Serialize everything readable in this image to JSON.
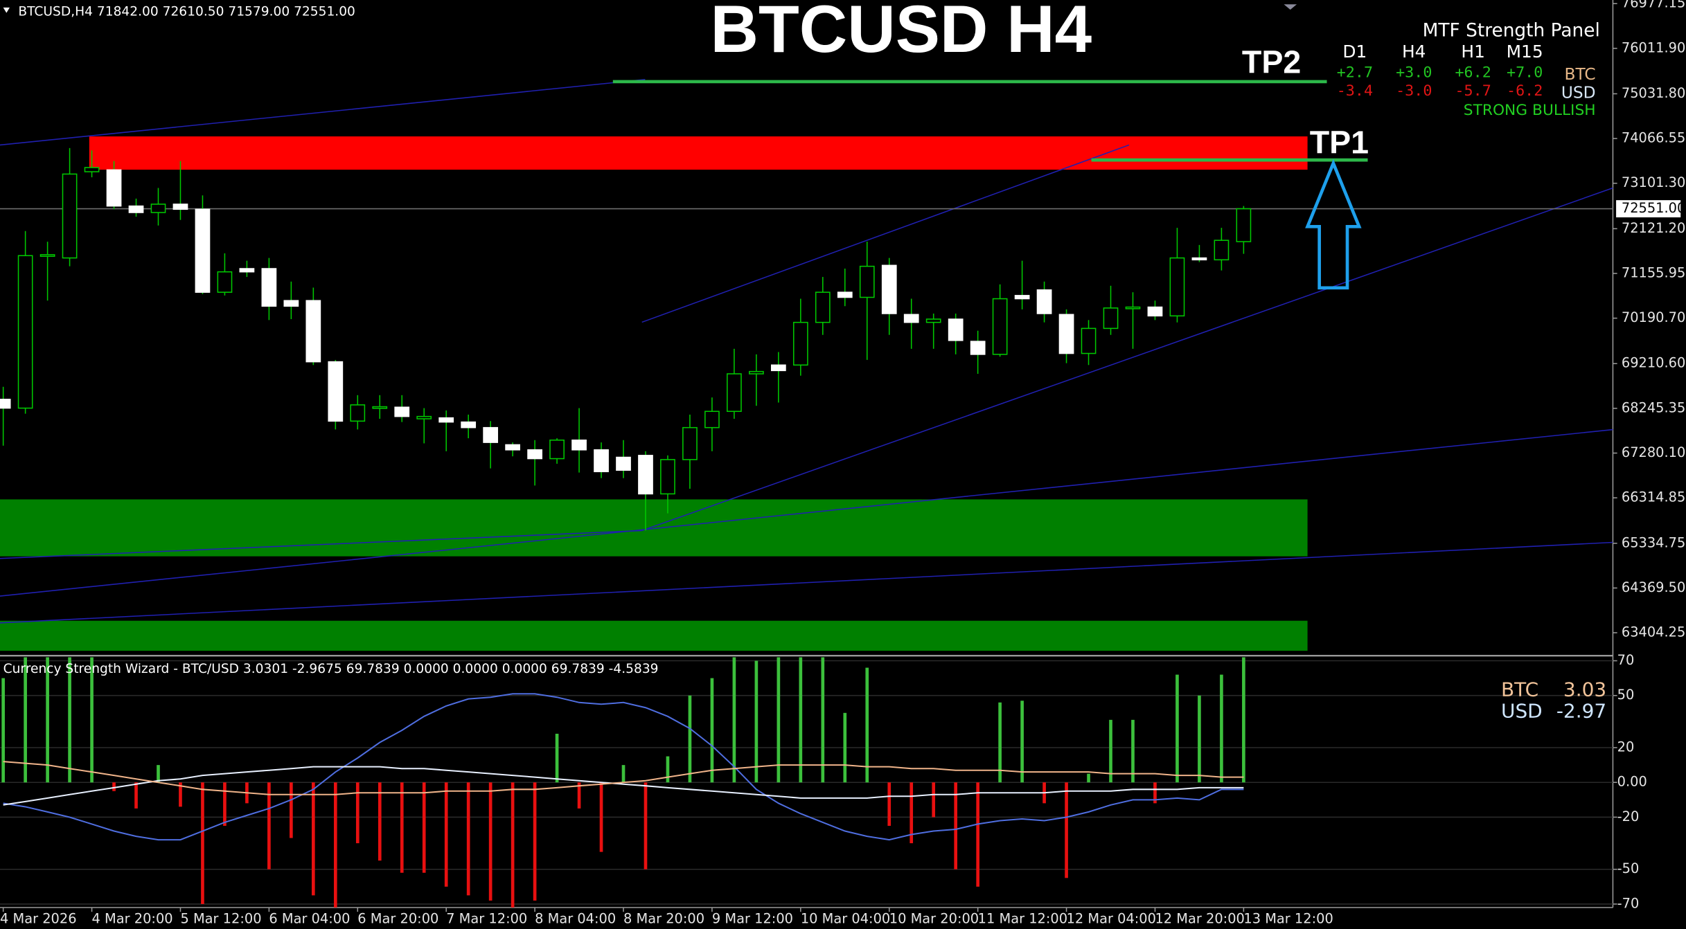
{
  "chart_data": [
    {
      "type": "candlestick",
      "title": "BTCUSD H4",
      "header": "BTCUSD,H4  71842.00 72610.50 71579.00 72551.00",
      "categories": [
        "4 Mar 2026",
        null,
        null,
        null,
        "4 Mar 20:00",
        null,
        null,
        null,
        "5 Mar 12:00",
        null,
        null,
        null,
        "6 Mar 04:00",
        null,
        null,
        null,
        "6 Mar 20:00",
        null,
        null,
        null,
        "7 Mar 12:00",
        null,
        null,
        null,
        "8 Mar 04:00",
        null,
        null,
        null,
        "8 Mar 20:00",
        null,
        null,
        null,
        "9 Mar 12:00",
        null,
        null,
        null,
        "10 Mar 04:00",
        null,
        null,
        null,
        "10 Mar 20:00",
        null,
        null,
        null,
        "11 Mar 12:00",
        null,
        null,
        null,
        "12 Mar 04:00",
        null,
        null,
        null,
        "12 Mar 20:00",
        null,
        null,
        null,
        "13 Mar 12:00"
      ],
      "open": [
        68440,
        68250,
        71540,
        71490,
        73350,
        73390,
        72610,
        72470,
        72650,
        72540,
        70750,
        71260,
        71260,
        70570,
        70570,
        69250,
        67970,
        68270,
        68270,
        68020,
        68040,
        67950,
        67830,
        67460,
        67350,
        67160,
        67560,
        67350,
        67190,
        67230,
        66400,
        67140,
        67830,
        68180,
        68990,
        69180,
        69180,
        70100,
        70750,
        70640,
        71330,
        70270,
        70100,
        70170,
        69690,
        69410,
        70680,
        70800,
        70270,
        69430,
        69970,
        70410,
        70430,
        70240,
        71490,
        71450,
        71842
      ],
      "high": [
        68710,
        72070,
        71840,
        73860,
        73810,
        73580,
        72770,
        73000,
        73580,
        72840,
        71590,
        71430,
        71490,
        70980,
        70850,
        69290,
        68530,
        68530,
        68530,
        68250,
        68200,
        68110,
        67970,
        67510,
        67560,
        67600,
        68250,
        67510,
        67560,
        67320,
        67230,
        68110,
        68480,
        69530,
        69410,
        69460,
        70610,
        71080,
        71260,
        71840,
        71490,
        70610,
        70290,
        70290,
        69920,
        70920,
        71430,
        70980,
        70380,
        70150,
        70890,
        70750,
        70570,
        72140,
        71770,
        72140,
        72610.5
      ],
      "low": [
        67440,
        68130,
        70570,
        71310,
        73230,
        72540,
        72380,
        72190,
        72310,
        70710,
        70680,
        71080,
        70150,
        70170,
        69180,
        67790,
        67790,
        68020,
        67950,
        67490,
        67320,
        67600,
        66950,
        67210,
        66580,
        67050,
        66860,
        66740,
        66740,
        65610,
        65980,
        66510,
        67320,
        68020,
        68300,
        68370,
        68950,
        69830,
        70450,
        69290,
        69830,
        69530,
        69530,
        69410,
        68990,
        69360,
        70380,
        70100,
        69220,
        69180,
        69830,
        69530,
        70150,
        70100,
        71400,
        71220,
        71579
      ],
      "close": [
        68250,
        71540,
        71560,
        73300,
        73440,
        72610,
        72470,
        72650,
        72540,
        70750,
        71190,
        71190,
        70450,
        70450,
        69250,
        67970,
        68320,
        68280,
        68070,
        68070,
        67950,
        67830,
        67510,
        67350,
        67160,
        67560,
        67350,
        66880,
        66910,
        66400,
        67140,
        67830,
        68180,
        68990,
        69040,
        69060,
        70100,
        70750,
        70640,
        71310,
        70290,
        70100,
        70170,
        69710,
        69410,
        70610,
        70610,
        70290,
        69430,
        69970,
        70410,
        70430,
        70240,
        71490,
        71450,
        71870,
        72551
      ],
      "up_color": "#00c800",
      "down_color": "#ffffff",
      "ylim": [
        62921,
        77055
      ],
      "yticks": [
        {
          "value": 76977.15,
          "label": "76977.15"
        },
        {
          "value": 76011.9,
          "label": "76011.90"
        },
        {
          "value": 75031.8,
          "label": "75031.80"
        },
        {
          "value": 74066.55,
          "label": "74066.55"
        },
        {
          "value": 73101.3,
          "label": "73101.30"
        },
        {
          "value": 72121.2,
          "label": "72121.20"
        },
        {
          "value": 71155.95,
          "label": "71155.95"
        },
        {
          "value": 70190.7,
          "label": "70190.70"
        },
        {
          "value": 69210.6,
          "label": "69210.60"
        },
        {
          "value": 68245.35,
          "label": "68245.35"
        },
        {
          "value": 67280.1,
          "label": "67280.10"
        },
        {
          "value": 66314.85,
          "label": "66314.85"
        },
        {
          "value": 65334.75,
          "label": "65334.75"
        },
        {
          "value": 64369.5,
          "label": "64369.50"
        },
        {
          "value": 63404.25,
          "label": "63404.25"
        }
      ],
      "current_price": {
        "value": 72551,
        "label": "72551.00"
      },
      "zones": [
        {
          "from": 73394,
          "to": 74112,
          "color": "#ff0000"
        },
        {
          "from": 65053,
          "to": 66281,
          "color": "#008000"
        },
        {
          "from": 63014,
          "to": 63663,
          "color": "#008000"
        }
      ],
      "targets": [
        {
          "name": "TP2",
          "value": 75294,
          "color": "#2db84a"
        },
        {
          "name": "TP1",
          "value": 73603,
          "color": "#2db84a"
        }
      ],
      "panel": {
        "title": "MTF Strength Panel",
        "columns": [
          "D1",
          "H4",
          "H1",
          "M15"
        ],
        "rows": [
          {
            "label": "BTC",
            "label_color": "#e8b888",
            "color": "#22c422",
            "values": [
              2.7,
              3.0,
              6.2,
              7.0
            ],
            "value_labels": [
              "+2.7",
              "+3.0",
              "+6.2",
              "+7.0"
            ]
          },
          {
            "label": "USD",
            "label_color": "#d8e8f8",
            "color": "#e01515",
            "values": [
              -3.4,
              -3.0,
              -5.7,
              -6.2
            ],
            "value_labels": [
              "-3.4",
              "-3.0",
              "-5.7",
              "-6.2"
            ]
          }
        ],
        "signal": "STRONG BULLISH",
        "signal_color": "#22d022"
      }
    },
    {
      "type": "combo",
      "title": "Currency Strength Wizard - BTC/USD 3.0301 -2.9675 69.7839 0.0000 0.0000 0.0000 69.7839 -4.5839",
      "ylim": [
        -72,
        72
      ],
      "yticks": [
        70,
        50,
        20,
        {
          "value": 0,
          "label": "0.00"
        },
        -20,
        -50,
        -70
      ],
      "histogram": {
        "pos_color": "#3cc03c",
        "neg_color": "#e81010",
        "values": [
          60,
          72,
          72,
          72,
          72,
          -5,
          -15,
          10,
          -14,
          -70,
          -25,
          -12,
          -50,
          -32,
          -65,
          -72,
          -35,
          -45,
          -52,
          -52,
          -60,
          -65,
          -68,
          -72,
          -68,
          28,
          -15,
          -40,
          10,
          -50,
          15,
          50,
          60,
          72,
          70,
          72,
          72,
          72,
          40,
          66,
          -25,
          -35,
          -20,
          -50,
          -60,
          46,
          47,
          -12,
          -55,
          5,
          36,
          36,
          -12,
          62,
          50,
          62,
          72
        ]
      },
      "series": [
        {
          "name": "BTC",
          "color": "#f0b48a",
          "readout": 3.03,
          "values": [
            12,
            11,
            10,
            8,
            6,
            4,
            2,
            0,
            -2,
            -4,
            -5,
            -6,
            -7,
            -7,
            -7,
            -7,
            -6,
            -6,
            -6,
            -6,
            -5,
            -5,
            -5,
            -4,
            -4,
            -3,
            -2,
            -1,
            0,
            1,
            3,
            5,
            7,
            8,
            9,
            10,
            10,
            10,
            10,
            9,
            9,
            8,
            8,
            7,
            7,
            7,
            6,
            6,
            6,
            6,
            5,
            5,
            5,
            4,
            4,
            3,
            3
          ]
        },
        {
          "name": "USD",
          "color": "#e8f0ff",
          "readout": -2.97,
          "values": [
            -13,
            -11,
            -9,
            -7,
            -5,
            -3,
            -1,
            1,
            2,
            4,
            5,
            6,
            7,
            8,
            9,
            9,
            9,
            9,
            8,
            8,
            7,
            6,
            5,
            4,
            3,
            2,
            1,
            0,
            -1,
            -2,
            -3,
            -4,
            -5,
            -6,
            -7,
            -8,
            -9,
            -9,
            -9,
            -9,
            -8,
            -8,
            -7,
            -7,
            -6,
            -6,
            -6,
            -6,
            -5,
            -5,
            -5,
            -4,
            -4,
            -4,
            -3,
            -3,
            -3
          ]
        },
        {
          "color": "#4f6ee0",
          "values": [
            -12,
            -14,
            -17,
            -20,
            -24,
            -28,
            -31,
            -33,
            -33,
            -28,
            -23,
            -19,
            -15,
            -10,
            -4,
            6,
            14,
            23,
            30,
            38,
            44,
            48,
            49,
            51,
            51,
            49,
            46,
            45,
            46,
            43,
            38,
            31,
            21,
            9,
            -4,
            -12,
            -18,
            -23,
            -28,
            -31,
            -33,
            -30,
            -28,
            -27,
            -24,
            -22,
            -21,
            -22,
            -20,
            -17,
            -13,
            -10,
            -10,
            -9,
            -10,
            -4,
            -4
          ]
        }
      ]
    }
  ]
}
